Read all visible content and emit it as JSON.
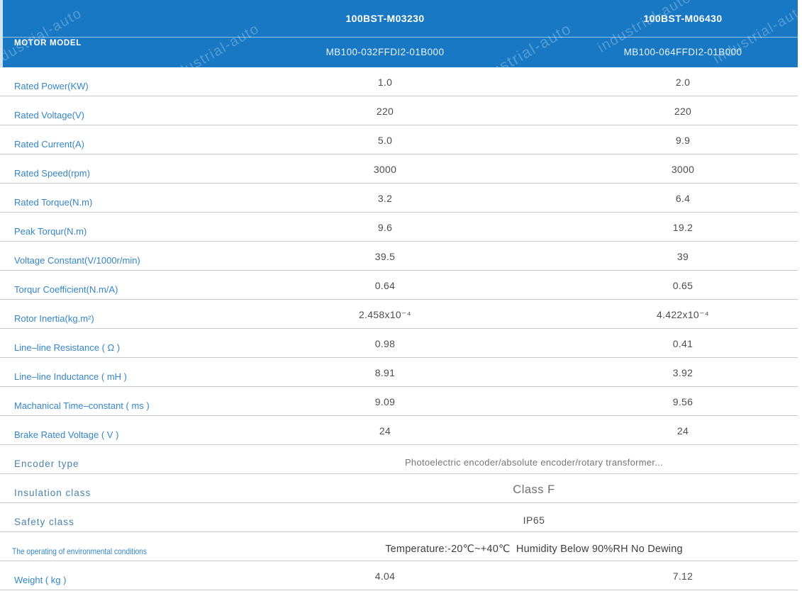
{
  "watermark_text": "industrial-auto",
  "header": {
    "label": "MOTOR MODEL",
    "columns": [
      {
        "series": "100BST-M03230",
        "model": "MB100-032FFDI2-01B000"
      },
      {
        "series": "100BST-M06430",
        "model": "MB100-064FFDI2-01B000"
      }
    ]
  },
  "rows": [
    {
      "label": "Rated Power(KW)",
      "values": [
        "1.0",
        "2.0"
      ]
    },
    {
      "label": "Rated Voltage(V)",
      "values": [
        "220",
        "220"
      ]
    },
    {
      "label": "Rated Current(A)",
      "values": [
        "5.0",
        "9.9"
      ]
    },
    {
      "label": "Rated Speed(rpm)",
      "values": [
        "3000",
        "3000"
      ]
    },
    {
      "label": "Rated Torque(N.m)",
      "values": [
        "3.2",
        "6.4"
      ]
    },
    {
      "label": "Peak Torqur(N.m)",
      "values": [
        "9.6",
        "19.2"
      ]
    },
    {
      "label": "Voltage Constant(V/1000r/min)",
      "values": [
        "39.5",
        "39"
      ]
    },
    {
      "label": "Torqur Coefficient(N.m/A)",
      "values": [
        "0.64",
        "0.65"
      ]
    },
    {
      "label": "Rotor Inertia(kg.m²)",
      "values": [
        "2.458x10⁻⁴",
        "4.422x10⁻⁴"
      ]
    },
    {
      "label": "Line–line Resistance ( Ω )",
      "values": [
        "0.98",
        "0.41"
      ]
    },
    {
      "label": "Line–line Inductance ( mH )",
      "values": [
        "8.91",
        "3.92"
      ]
    },
    {
      "label": "Machanical Time–constant ( ms )",
      "values": [
        "9.09",
        "9.56"
      ]
    },
    {
      "label": "Brake Rated Voltage ( V )",
      "values": [
        "24",
        "24"
      ]
    },
    {
      "label": "Encoder type",
      "span": "Photoelectric encoder/absolute encoder/rotary transformer..."
    },
    {
      "label": "Insulation class",
      "span": "Class F"
    },
    {
      "label": "Safety class",
      "span": "IP65"
    },
    {
      "label": "The operating of environmental conditions",
      "span": "Temperature:-20℃~+40℃  Humidity Below 90%RH No Dewing"
    },
    {
      "label": "Weight ( kg )",
      "values": [
        "4.04",
        "7.12"
      ]
    }
  ],
  "colors": {
    "header_bg": "#1878c4",
    "label_blue": "#3585c8",
    "value_gray": "#4d4d4d",
    "row_border": "#c9c9c9"
  }
}
